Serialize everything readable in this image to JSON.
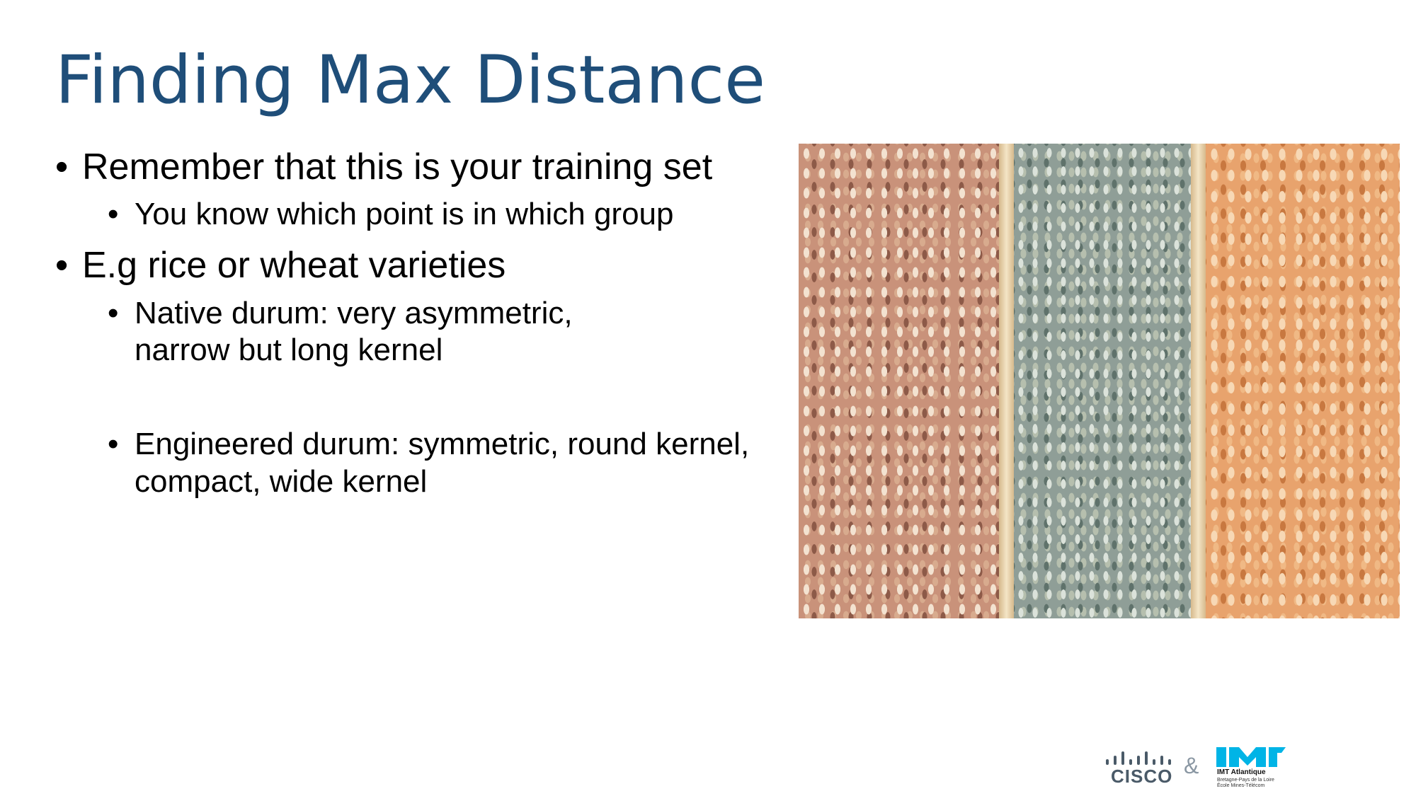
{
  "slide": {
    "title": "Finding Max Distance",
    "bullets": [
      {
        "text": "Remember that this is your training set",
        "sub": [
          "You know which point is in which group"
        ]
      },
      {
        "text": "E.g rice or wheat varieties",
        "sub": [
          "Native durum: very asymmetric, narrow but long kernel",
          "Engineered durum: symmetric, round kernel, compact, wide kernel"
        ]
      }
    ],
    "bullet_glyph": "•"
  },
  "footer": {
    "cisco_label": "CISCO",
    "ampersand": "&",
    "imt_name": "IMT Atlantique",
    "imt_line1": "Bretagne-Pays de la Loire",
    "imt_line2": "École Mines-Télécom"
  },
  "colors": {
    "title": "#1f4e79",
    "cisco_bars": "#4a5a68",
    "imt_mark": "#00b4e6"
  },
  "icons": {
    "cisco": "cisco-logo",
    "imt": "imt-atlantique-logo"
  }
}
